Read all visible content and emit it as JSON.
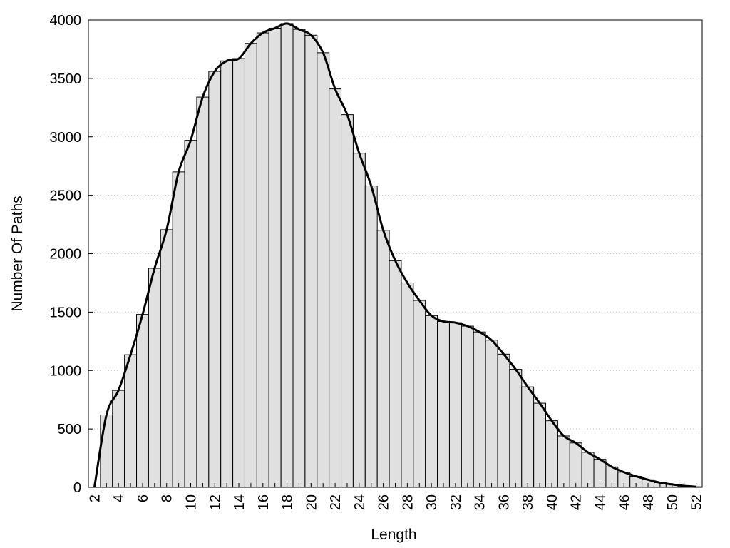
{
  "chart_data": {
    "type": "bar",
    "title": "",
    "xlabel": "Length",
    "ylabel": "Number Of Paths",
    "categories": [
      2,
      3,
      4,
      5,
      6,
      7,
      8,
      9,
      10,
      11,
      12,
      13,
      14,
      15,
      16,
      17,
      18,
      19,
      20,
      21,
      22,
      23,
      24,
      25,
      26,
      27,
      28,
      29,
      30,
      31,
      32,
      33,
      34,
      35,
      36,
      37,
      38,
      39,
      40,
      41,
      42,
      43,
      44,
      45,
      46,
      47,
      48,
      49,
      50,
      51,
      52
    ],
    "values": [
      0,
      620,
      830,
      1135,
      1480,
      1875,
      2205,
      2700,
      2970,
      3340,
      3560,
      3650,
      3670,
      3800,
      3890,
      3930,
      3970,
      3920,
      3870,
      3720,
      3410,
      3190,
      2860,
      2580,
      2200,
      1940,
      1750,
      1600,
      1470,
      1420,
      1410,
      1380,
      1330,
      1260,
      1140,
      1010,
      860,
      720,
      570,
      440,
      380,
      300,
      240,
      175,
      130,
      95,
      65,
      40,
      25,
      12,
      5
    ],
    "curve": {
      "x": [
        2,
        3,
        4,
        5,
        6,
        7,
        8,
        9,
        10,
        11,
        12,
        13,
        14,
        15,
        16,
        17,
        18,
        19,
        20,
        21,
        22,
        23,
        24,
        25,
        26,
        27,
        28,
        29,
        30,
        31,
        32,
        33,
        34,
        35,
        36,
        37,
        38,
        39,
        40,
        41,
        42,
        43,
        44,
        45,
        46,
        47,
        48,
        49,
        50,
        51,
        52
      ],
      "y": [
        0,
        620,
        830,
        1135,
        1480,
        1875,
        2205,
        2700,
        2970,
        3340,
        3560,
        3650,
        3670,
        3800,
        3890,
        3930,
        3970,
        3920,
        3870,
        3720,
        3410,
        3190,
        2860,
        2580,
        2200,
        1940,
        1750,
        1600,
        1470,
        1420,
        1410,
        1380,
        1330,
        1260,
        1140,
        1010,
        860,
        720,
        570,
        440,
        380,
        300,
        240,
        175,
        130,
        95,
        65,
        40,
        25,
        12,
        5
      ]
    },
    "x_tick_labels": [
      "2",
      "4",
      "6",
      "8",
      "10",
      "12",
      "14",
      "16",
      "18",
      "20",
      "22",
      "24",
      "26",
      "28",
      "30",
      "32",
      "34",
      "36",
      "38",
      "40",
      "42",
      "44",
      "46",
      "48",
      "50",
      "52"
    ],
    "y_ticks": [
      0,
      500,
      1000,
      1500,
      2000,
      2500,
      3000,
      3500,
      4000
    ],
    "ylim": [
      0,
      4000
    ],
    "xlim": [
      1.5,
      52.5
    ],
    "grid": "horizontal dotted",
    "legend": "none",
    "colors": {
      "bar_fill": "#e0e0e0",
      "bar_stroke": "#000000",
      "curve": "#000000",
      "grid": "#bbbbbb"
    }
  }
}
